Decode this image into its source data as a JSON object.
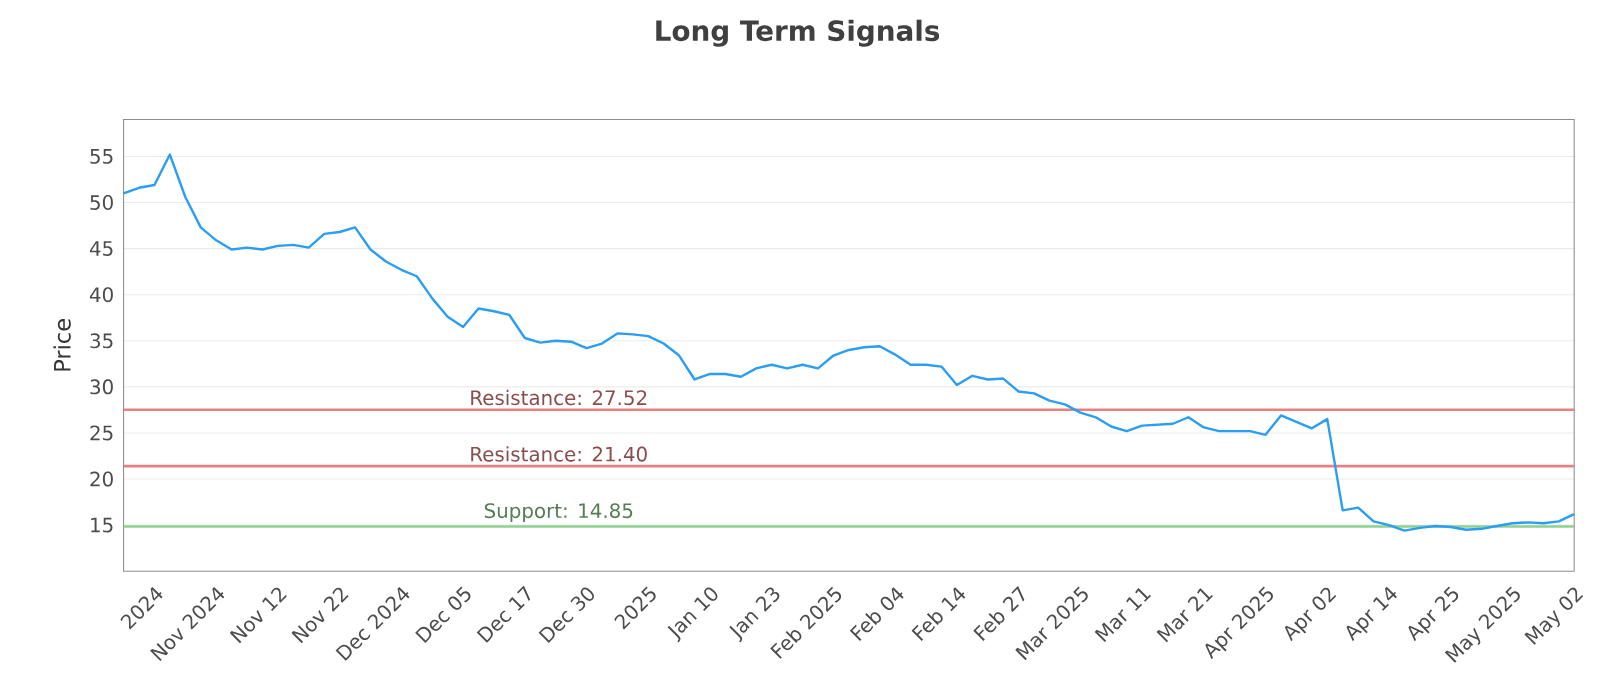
{
  "chart_data": {
    "type": "line",
    "title": "Long Term Signals",
    "ylabel": "Price",
    "categories": [
      null,
      null,
      "2024",
      null,
      null,
      null,
      "Nov 2024",
      null,
      null,
      null,
      "Nov 12",
      null,
      null,
      null,
      "Nov 22",
      null,
      null,
      null,
      "Dec 2024",
      null,
      null,
      null,
      "Dec 05",
      null,
      null,
      null,
      "Dec 17",
      null,
      null,
      null,
      "Dec 30",
      null,
      null,
      null,
      "2025",
      null,
      null,
      null,
      "Jan 10",
      null,
      null,
      null,
      "Jan 23",
      null,
      null,
      null,
      "Feb 2025",
      null,
      null,
      null,
      "Feb 04",
      null,
      null,
      null,
      "Feb 14",
      null,
      null,
      null,
      "Feb 27",
      null,
      null,
      null,
      "Mar 2025",
      null,
      null,
      null,
      "Mar 11",
      null,
      null,
      null,
      "Mar 21",
      null,
      null,
      null,
      "Apr 2025",
      null,
      null,
      null,
      "Apr 02",
      null,
      null,
      null,
      "Apr 14",
      null,
      null,
      null,
      "Apr 25",
      null,
      null,
      null,
      "May 2025",
      null,
      null,
      null,
      "May 02"
    ],
    "series": [
      {
        "color": "#2a9df4",
        "values": [
          51.0,
          51.6,
          51.9,
          55.2,
          50.6,
          47.3,
          45.9,
          44.9,
          45.1,
          44.9,
          45.3,
          45.4,
          45.1,
          46.6,
          46.8,
          47.3,
          44.9,
          43.6,
          42.7,
          42.0,
          39.6,
          37.6,
          36.5,
          38.5,
          38.2,
          37.8,
          35.3,
          34.8,
          35.0,
          34.9,
          34.2,
          34.7,
          35.8,
          35.7,
          35.5,
          34.7,
          33.4,
          30.8,
          31.4,
          31.4,
          31.1,
          32.0,
          32.4,
          32.0,
          32.4,
          32.0,
          33.4,
          34.0,
          34.3,
          34.4,
          33.5,
          32.4,
          32.4,
          32.2,
          30.2,
          31.2,
          30.8,
          30.9,
          29.5,
          29.3,
          28.5,
          28.1,
          27.2,
          26.7,
          25.7,
          25.2,
          25.8,
          25.9,
          26.0,
          26.7,
          25.6,
          25.2,
          25.2,
          25.2,
          24.8,
          26.9,
          26.2,
          25.5,
          26.5,
          16.6,
          16.9,
          15.4,
          15.0,
          14.4,
          14.7,
          14.9,
          14.8,
          14.5,
          14.6,
          14.9,
          15.2,
          15.3,
          15.2,
          15.4,
          16.2
        ]
      }
    ],
    "ylim": [
      10,
      59
    ],
    "yticks": [
      15,
      20,
      25,
      30,
      35,
      40,
      45,
      50,
      55
    ],
    "grid": "y",
    "marker": "none",
    "line_style": "solid",
    "ref_lines": [
      {
        "axis": "y",
        "value": 27.52,
        "label": "Resistance: 27.52",
        "color": "#e88080"
      },
      {
        "axis": "y",
        "value": 21.4,
        "label": "Resistance: 21.40",
        "color": "#e88080"
      },
      {
        "axis": "y",
        "value": 14.85,
        "label": "Support: 14.85",
        "color": "#8fd18f"
      }
    ]
  }
}
